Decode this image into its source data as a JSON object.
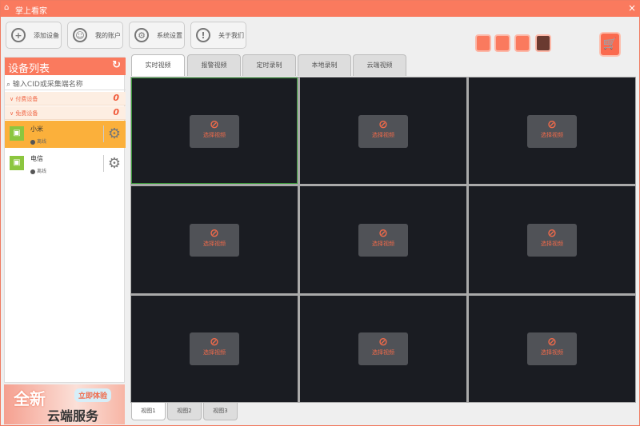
{
  "app": {
    "title": "掌上看家",
    "close": "×"
  },
  "toolbar": [
    {
      "label": "添加设备",
      "icon": "plus-icon",
      "glyph": "+"
    },
    {
      "label": "我的账户",
      "icon": "user-icon",
      "glyph": "☺"
    },
    {
      "label": "系统设置",
      "icon": "gear-icon",
      "glyph": "⚙"
    },
    {
      "label": "关于我们",
      "icon": "info-icon",
      "glyph": "!"
    }
  ],
  "layouts": [
    "fullscreen-layout-icon",
    "single-layout-icon",
    "quad-layout-icon",
    "nine-layout-icon"
  ],
  "sidebar": {
    "title": "设备列表",
    "refresh": "↻",
    "search_placeholder": "输入CID或采集端名称",
    "groups": [
      {
        "label": "付费设备",
        "count": "0"
      },
      {
        "label": "免费设备",
        "count": "0"
      }
    ],
    "devices": [
      {
        "name": "小米",
        "status": "离线",
        "selected": true
      },
      {
        "name": "电信",
        "status": "离线",
        "selected": false
      }
    ]
  },
  "banner": {
    "line1": "全新",
    "line2": "云端服务",
    "cta": "立即体验"
  },
  "tabs": [
    "实时视频",
    "报警视频",
    "定时录制",
    "本地录制",
    "云端视频"
  ],
  "active_tab": 0,
  "cell_label": "选择视频",
  "views": [
    "视图1",
    "视图2",
    "视图3"
  ],
  "colors": {
    "accent": "#fa7a5e",
    "selected_device": "#fbb03b",
    "cell": "#1a1c22"
  }
}
